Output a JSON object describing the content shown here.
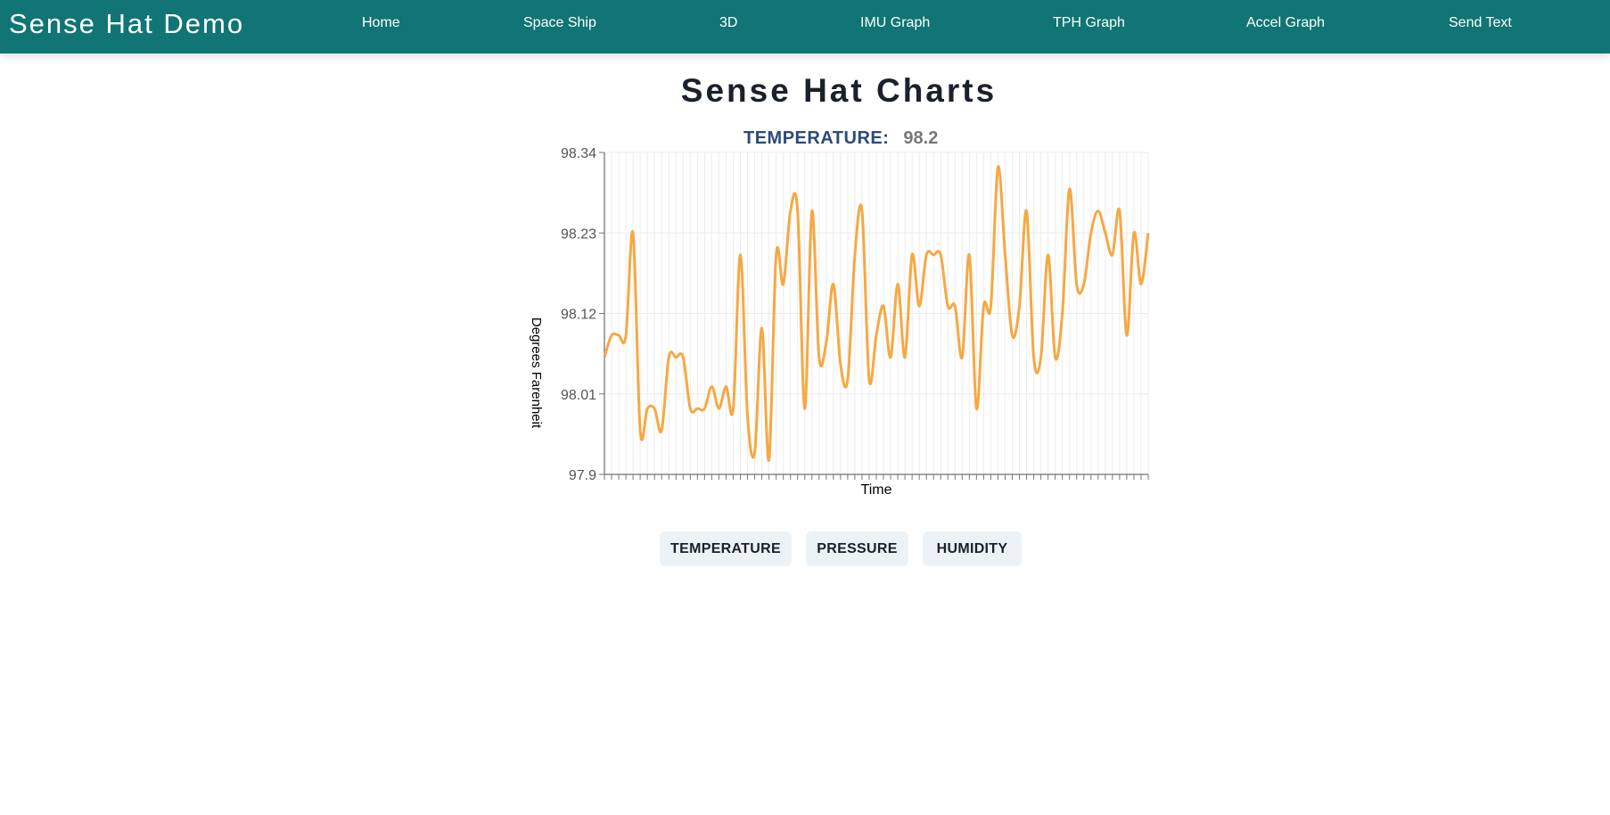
{
  "nav": {
    "brand": "Sense Hat Demo",
    "links": [
      "Home",
      "Space Ship",
      "3D",
      "IMU Graph",
      "TPH Graph",
      "Accel Graph",
      "Send Text"
    ]
  },
  "page": {
    "title": "Sense Hat Charts"
  },
  "reading": {
    "label": "TEMPERATURE:",
    "value": "98.2"
  },
  "buttons": {
    "temperature": "TEMPERATURE",
    "pressure": "PRESSURE",
    "humidity": "HUMIDITY"
  },
  "colors": {
    "navbar": "#107574",
    "series": "#f6a843",
    "reading_label": "#2c4a7a"
  },
  "chart_data": {
    "type": "line",
    "title": "",
    "xlabel": "Time",
    "ylabel": "Degrees Farenheit",
    "ylim": [
      97.9,
      98.34
    ],
    "yticks": [
      "98.34",
      "98.23",
      "98.12",
      "98.01",
      "97.9"
    ],
    "grid": true,
    "series": [
      {
        "values": [
          98.06,
          98.09,
          98.09,
          98.09,
          98.23,
          97.96,
          97.99,
          97.99,
          97.96,
          98.06,
          98.06,
          98.06,
          97.99,
          97.99,
          97.99,
          98.02,
          97.99,
          98.02,
          97.99,
          98.2,
          97.98,
          97.93,
          98.1,
          97.92,
          98.2,
          98.16,
          98.26,
          98.26,
          97.99,
          98.26,
          98.06,
          98.08,
          98.16,
          98.05,
          98.03,
          98.2,
          98.26,
          98.03,
          98.09,
          98.13,
          98.06,
          98.16,
          98.06,
          98.2,
          98.13,
          98.2,
          98.2,
          98.2,
          98.13,
          98.13,
          98.06,
          98.2,
          97.99,
          98.13,
          98.13,
          98.32,
          98.2,
          98.09,
          98.13,
          98.26,
          98.06,
          98.06,
          98.2,
          98.06,
          98.12,
          98.29,
          98.16,
          98.16,
          98.23,
          98.26,
          98.23,
          98.2,
          98.26,
          98.09,
          98.23,
          98.16,
          98.23
        ]
      }
    ]
  }
}
